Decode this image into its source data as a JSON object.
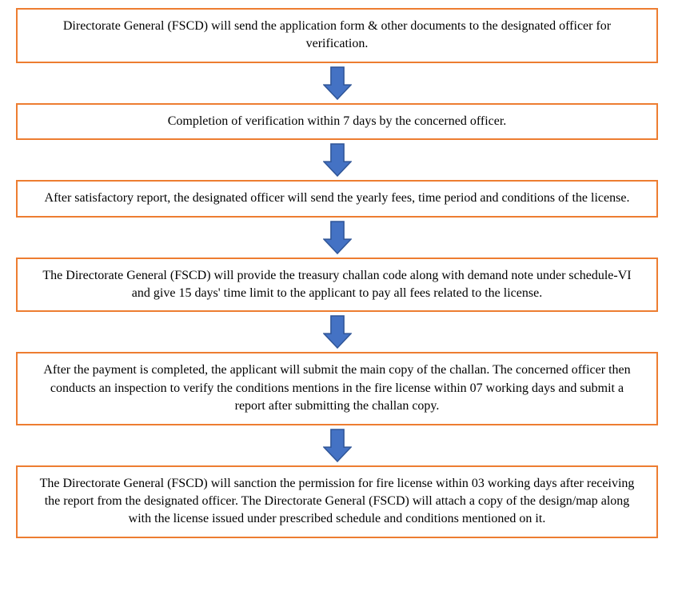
{
  "flowchart": {
    "type": "flowchart",
    "direction": "vertical",
    "box_border_color": "#ed7d31",
    "box_border_width": 2,
    "box_background": "#ffffff",
    "text_color": "#000000",
    "text_fontsize": 16,
    "font_family": "Georgia, 'Times New Roman', serif",
    "arrow_fill": "#4472c4",
    "arrow_stroke": "#2f5597",
    "arrow_width": 36,
    "arrow_height": 42,
    "steps": [
      {
        "text": "Directorate General (FSCD) will send the application form & other documents to the designated officer for verification."
      },
      {
        "text": "Completion of verification within 7 days by the concerned officer."
      },
      {
        "text": "After satisfactory report, the designated officer will send the yearly fees, time period and conditions of the license."
      },
      {
        "text": "The Directorate General (FSCD) will provide the treasury challan code along with demand note under schedule-VI and give 15 days' time limit to the applicant to pay all fees related to the license."
      },
      {
        "text": "After the payment is completed, the applicant will submit the main copy of the challan. The concerned officer then conducts an inspection to verify the conditions mentions in the fire license within 07 working days and submit a report after submitting the challan copy."
      },
      {
        "text": "The Directorate General (FSCD) will sanction the permission for fire license within 03 working days after receiving the report from the designated officer. The Directorate General (FSCD) will attach a copy of the design/map along with the license issued under prescribed schedule and conditions mentioned on it."
      }
    ]
  }
}
